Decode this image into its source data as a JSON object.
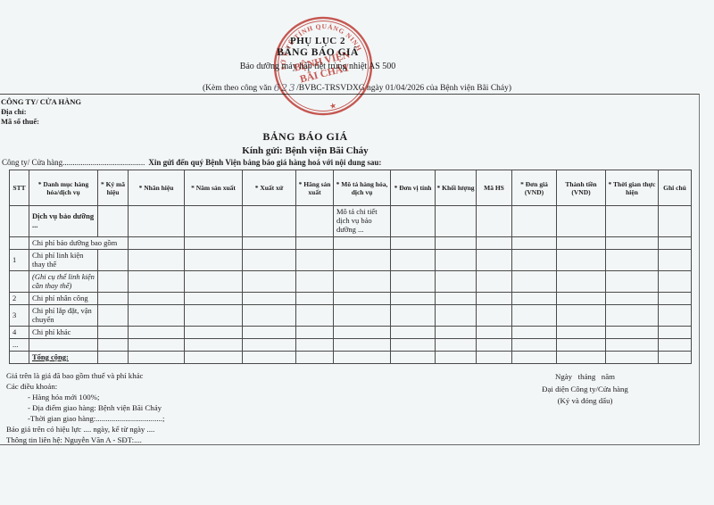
{
  "header": {
    "appendix": "PHỤ LỤC 2",
    "title": "BẢNG BÁO GIÁ",
    "subtitle": "Bảo dưỡng máy hấp tiệt trùng nhiệt AS 500",
    "reference": {
      "prefix": "(Kèm theo công văn ",
      "number_handwritten": "623",
      "suffix": "/BVBC-TRSVDXG ngày 01/04/2026 của Bệnh viện Bãi Cháy)"
    }
  },
  "stamp": {
    "arc_text": "SỞ Y TẾ TỈNH QUẢNG NINH",
    "line1": "BỆNH VIỆN",
    "line2": "BÃI CHÁY",
    "star": "★",
    "color": "#c5372e"
  },
  "company_block": {
    "line1": "CÔNG TY/ CỬA HÀNG",
    "line2": "Địa chỉ:",
    "line3": "Mã số thuế:"
  },
  "form": {
    "title": "BẢNG BÁO GIÁ",
    "recipient": "Kính gửi: Bệnh viện Bãi Cháy",
    "intro_plain": "Công ty/ Cửa hàng.........................................",
    "intro_bold": "Xin gửi đến quý Bệnh Viện bảng báo giá hàng hoá với nội dung sau:"
  },
  "table": {
    "headers": [
      "STT",
      "* Danh mục hàng hóa/dịch vụ",
      "* Ký mã hiệu",
      "* Nhãn hiệu",
      "* Năm sản xuất",
      "* Xuất xứ",
      "* Hãng sản xuất",
      "* Mô tả hàng hóa, dịch vụ",
      "* Đơn vị tính",
      "* Khối lượng",
      "Mã HS",
      "* Đơn giá (VND)",
      "Thành tiền (VND)",
      "* Thời gian thực hiện",
      "Ghi chú"
    ],
    "rows": [
      {
        "cells": [
          "",
          {
            "t": "Dịch vụ bảo dưỡng ...",
            "b": true
          },
          "",
          "",
          "",
          "",
          "",
          "Mô tả chi tiết dịch vụ bảo dưỡng ...",
          "",
          "",
          "",
          "",
          "",
          "",
          ""
        ]
      },
      {
        "cells": [
          "",
          {
            "t": "Chi phí bảo dưỡng bao gồm",
            "span": 2
          },
          "",
          "",
          "",
          "",
          "",
          "",
          "",
          "",
          "",
          "",
          "",
          ""
        ]
      },
      {
        "cells": [
          {
            "t": "1",
            "center": true
          },
          "Chi phí linh kiện thay thế",
          "",
          "",
          "",
          "",
          "",
          "",
          "",
          "",
          "",
          "",
          "",
          "",
          ""
        ]
      },
      {
        "cells": [
          "",
          {
            "t": "(Ghi cụ thể linh kiện cần thay thế)",
            "i": true
          },
          "",
          "",
          "",
          "",
          "",
          "",
          "",
          "",
          "",
          "",
          "",
          "",
          ""
        ]
      },
      {
        "cells": [
          {
            "t": "2",
            "center": true
          },
          "Chi phí nhân công",
          "",
          "",
          "",
          "",
          "",
          "",
          "",
          "",
          "",
          "",
          "",
          "",
          ""
        ]
      },
      {
        "cells": [
          {
            "t": "3",
            "center": true
          },
          "Chi phí lắp đặt, vận chuyển",
          "",
          "",
          "",
          "",
          "",
          "",
          "",
          "",
          "",
          "",
          "",
          "",
          ""
        ]
      },
      {
        "cells": [
          {
            "t": "4",
            "center": true
          },
          "Chi phí khác",
          "",
          "",
          "",
          "",
          "",
          "",
          "",
          "",
          "",
          "",
          "",
          "",
          ""
        ]
      },
      {
        "cells": [
          "...",
          "",
          "",
          "",
          "",
          "",
          "",
          "",
          "",
          "",
          "",
          "",
          "",
          "",
          ""
        ]
      },
      {
        "cells": [
          "",
          {
            "t": "Tổng cộng:",
            "b": true,
            "u": true
          },
          "",
          "",
          "",
          "",
          "",
          "",
          "",
          "",
          "",
          "",
          "",
          "",
          ""
        ]
      }
    ]
  },
  "notes": {
    "lines": [
      {
        "text": "Giá trên là giá đã bao gồm thuế và phí khác",
        "indent": false
      },
      {
        "text": "Các điều khoản:",
        "indent": false
      },
      {
        "text": "- Hàng hóa mới 100%;",
        "indent": true
      },
      {
        "text": "- Địa điểm giao hàng: Bệnh viện Bãi Cháy",
        "indent": true
      },
      {
        "text": "-Thời gian giao hàng:..................................;",
        "indent": true
      },
      {
        "text": "Bảo giá trên có hiệu lực .... ngày, kể từ ngày ....",
        "indent": false
      },
      {
        "text": "Thông tin liên hệ: Nguyễn Văn A - SĐT:....",
        "indent": false
      }
    ]
  },
  "signature": {
    "date_line": "Ngày   tháng   năm",
    "representative": "Đại diện Công ty/Cửa hàng",
    "instruction": "(Ký và đóng dấu)"
  }
}
